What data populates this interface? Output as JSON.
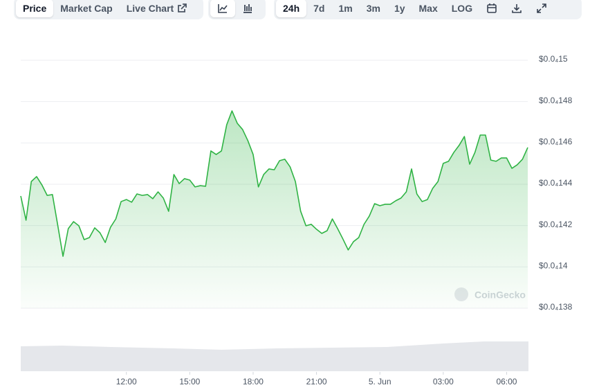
{
  "toolbar": {
    "tabs": [
      "Price",
      "Market Cap",
      "Live Chart"
    ],
    "ranges": [
      "24h",
      "7d",
      "1m",
      "3m",
      "1y",
      "Max",
      "LOG"
    ]
  },
  "watermark": "CoinGecko",
  "chart_data": {
    "type": "line",
    "color": "#2fb344",
    "grid": true,
    "xlim": [
      7,
      31
    ],
    "xticks": [
      {
        "value": 12,
        "label": "12:00"
      },
      {
        "value": 15,
        "label": "15:00"
      },
      {
        "value": 18,
        "label": "18:00"
      },
      {
        "value": 21,
        "label": "21:00"
      },
      {
        "value": 24,
        "label": "5. Jun"
      },
      {
        "value": 27,
        "label": "03:00"
      },
      {
        "value": 30,
        "label": "06:00"
      }
    ],
    "ylim": [
      1.38e-05,
      1.5e-05
    ],
    "yticks": [
      {
        "value": 1.5e-05,
        "label": "$0.0₄15"
      },
      {
        "value": 1.48e-05,
        "label": "$0.0₄148"
      },
      {
        "value": 1.46e-05,
        "label": "$0.0₄146"
      },
      {
        "value": 1.44e-05,
        "label": "$0.0₄144"
      },
      {
        "value": 1.42e-05,
        "label": "$0.0₄142"
      },
      {
        "value": 1.4e-05,
        "label": "$0.0₄14"
      },
      {
        "value": 1.38e-05,
        "label": "$0.0₄138"
      }
    ],
    "x": [
      7,
      7.25,
      7.5,
      7.75,
      8,
      8.25,
      8.5,
      8.75,
      9,
      9.25,
      9.5,
      9.75,
      10,
      10.25,
      10.5,
      10.75,
      11,
      11.25,
      11.5,
      11.75,
      12,
      12.25,
      12.5,
      12.75,
      13,
      13.25,
      13.5,
      13.75,
      14,
      14.25,
      14.5,
      14.75,
      15,
      15.25,
      15.5,
      15.75,
      16,
      16.25,
      16.5,
      16.75,
      17,
      17.25,
      17.5,
      17.75,
      18,
      18.25,
      18.5,
      18.75,
      19,
      19.25,
      19.5,
      19.75,
      20,
      20.25,
      20.5,
      20.75,
      21,
      21.25,
      21.5,
      21.75,
      22,
      22.25,
      22.5,
      22.75,
      23,
      23.25,
      23.5,
      23.75,
      24,
      24.25,
      24.5,
      24.75,
      25,
      25.25,
      25.5,
      25.75,
      26,
      26.25,
      26.5,
      26.75,
      27,
      27.25,
      27.5,
      27.75,
      28,
      28.25,
      28.5,
      28.75,
      29,
      29.25,
      29.5,
      29.75,
      30,
      30.25,
      30.5,
      30.75,
      31
    ],
    "values": [
      1.4343e-05,
      1.4226e-05,
      1.4413e-05,
      1.4437e-05,
      1.4397e-05,
      1.4346e-05,
      1.435e-05,
      1.4202e-05,
      1.4051e-05,
      1.4185e-05,
      1.4219e-05,
      1.4199e-05,
      1.4132e-05,
      1.4142e-05,
      1.4189e-05,
      1.4165e-05,
      1.4118e-05,
      1.4192e-05,
      1.4232e-05,
      1.4316e-05,
      1.4326e-05,
      1.4313e-05,
      1.4353e-05,
      1.4346e-05,
      1.435e-05,
      1.433e-05,
      1.4363e-05,
      1.4333e-05,
      1.4269e-05,
      1.4447e-05,
      1.4403e-05,
      1.4427e-05,
      1.442e-05,
      1.4387e-05,
      1.4393e-05,
      1.439e-05,
      1.4561e-05,
      1.4544e-05,
      1.4561e-05,
      1.4688e-05,
      1.4755e-05,
      1.4695e-05,
      1.4665e-05,
      1.4611e-05,
      1.4544e-05,
      1.4387e-05,
      1.4447e-05,
      1.4474e-05,
      1.447e-05,
      1.4514e-05,
      1.4521e-05,
      1.4484e-05,
      1.4413e-05,
      1.4269e-05,
      1.4199e-05,
      1.4206e-05,
      1.4182e-05,
      1.4162e-05,
      1.4175e-05,
      1.4232e-05,
      1.4185e-05,
      1.4135e-05,
      1.4082e-05,
      1.4122e-05,
      1.4142e-05,
      1.4206e-05,
      1.4246e-05,
      1.4306e-05,
      1.4296e-05,
      1.4303e-05,
      1.4303e-05,
      1.432e-05,
      1.4333e-05,
      1.4363e-05,
      1.4474e-05,
      1.4353e-05,
      1.4316e-05,
      1.4326e-05,
      1.438e-05,
      1.4413e-05,
      1.4501e-05,
      1.4511e-05,
      1.4554e-05,
      1.4588e-05,
      1.4631e-05,
      1.4497e-05,
      1.4554e-05,
      1.4638e-05,
      1.4638e-05,
      1.4517e-05,
      1.4511e-05,
      1.4527e-05,
      1.4527e-05,
      1.4477e-05,
      1.4494e-05,
      1.4521e-05,
      1.4578e-05
    ]
  }
}
